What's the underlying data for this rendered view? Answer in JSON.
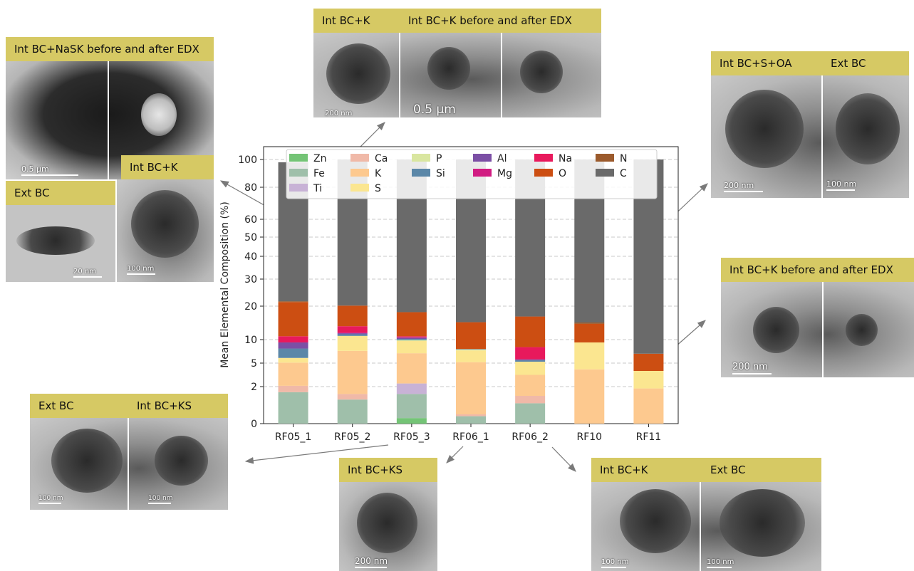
{
  "panels": {
    "top_center": {
      "label_a": "Int BC+K",
      "label_b": "Int BC+K before and after EDX",
      "scale_a": "200 nm",
      "scale_b": "0.5 μm"
    },
    "top_left": {
      "label": "Int BC+NaSK before and after EDX",
      "scale": "0.5 μm"
    },
    "mid_left": {
      "label_a": "Ext BC",
      "label_b": "Int BC+K",
      "scale_a": "20 nm",
      "scale_b": "100 nm"
    },
    "top_right": {
      "label_a": "Int BC+S+OA",
      "label_b": "Ext BC",
      "scale_a": "200 nm",
      "scale_b": "100 nm"
    },
    "mid_right": {
      "label": "Int BC+K before and after EDX",
      "scale": "200 nm"
    },
    "bottom_left": {
      "label_a": "Ext BC",
      "label_b": "Int BC+KS",
      "scale_a": "100 nm",
      "scale_b": "100 nm"
    },
    "bottom_center": {
      "label": "Int BC+KS",
      "scale": "200 nm"
    },
    "bottom_right": {
      "label_a": "Int BC+K",
      "label_b": "Ext BC",
      "scale_a": "100 nm",
      "scale_b": "100 nm"
    }
  },
  "colors": {
    "Zn": "#74c476",
    "Fe": "#9fbfaa",
    "Ti": "#c8b2d6",
    "Ca": "#f0b9a8",
    "K": "#fdc98f",
    "S": "#fbe690",
    "P": "#d9e6a0",
    "Si": "#5b87a8",
    "Al": "#7b4fa5",
    "Mg": "#d11c82",
    "Na": "#e8195c",
    "O": "#cc4e12",
    "N": "#9b5a2c",
    "C": "#6a6a6a"
  },
  "chart_data": {
    "type": "bar",
    "stacked": true,
    "ylabel": "Mean Elemental Composition (%)",
    "y_tick_labels": [
      "0",
      "2",
      "5",
      "10",
      "20",
      "30",
      "40",
      "50",
      "60",
      "80",
      "100"
    ],
    "y_tick_values": [
      0,
      2,
      5,
      10,
      20,
      30,
      40,
      50,
      60,
      80,
      100
    ],
    "grid": true,
    "legend_position": "top",
    "legend": [
      "Zn",
      "Ca",
      "P",
      "Al",
      "Na",
      "N",
      "Fe",
      "K",
      "Si",
      "Mg",
      "O",
      "C",
      "Ti",
      "S"
    ],
    "categories": [
      "RF05_1",
      "RF05_2",
      "RF05_3",
      "RF06_1",
      "RF06_2",
      "RF10",
      "RF11"
    ],
    "series": [
      {
        "name": "Zn",
        "values": [
          0,
          0,
          0.3,
          0,
          0,
          0,
          0
        ]
      },
      {
        "name": "Fe",
        "values": [
          1.7,
          1.3,
          1.3,
          0.4,
          1.1,
          0,
          0
        ]
      },
      {
        "name": "Ti",
        "values": [
          0,
          0,
          0.8,
          0,
          0,
          0,
          0
        ]
      },
      {
        "name": "Ca",
        "values": [
          0.4,
          0.3,
          0,
          0.1,
          0.4,
          0,
          0
        ]
      },
      {
        "name": "K",
        "values": [
          3.0,
          6.0,
          4.7,
          4.7,
          2.0,
          4.2,
          1.9
        ]
      },
      {
        "name": "S",
        "values": [
          1.0,
          3.5,
          2.6,
          2.5,
          1.8,
          5.2,
          2.1
        ]
      },
      {
        "name": "P",
        "values": [
          0,
          0,
          0.2,
          0.2,
          0,
          0,
          0
        ]
      },
      {
        "name": "Si",
        "values": [
          2.0,
          0.5,
          0.3,
          0.1,
          0.3,
          0,
          0
        ]
      },
      {
        "name": "Al",
        "values": [
          1.3,
          0.3,
          0.4,
          0,
          0.2,
          0,
          0
        ]
      },
      {
        "name": "Mg",
        "values": [
          0,
          0.2,
          0.1,
          0,
          0,
          0,
          0
        ]
      },
      {
        "name": "Na",
        "values": [
          1.6,
          1.9,
          0.3,
          0,
          2.6,
          0,
          0
        ]
      },
      {
        "name": "O",
        "values": [
          10.5,
          6.2,
          7.2,
          7.2,
          8.5,
          5.3,
          3.0
        ]
      },
      {
        "name": "N",
        "values": [
          0.3,
          0,
          0,
          0,
          0,
          0.4,
          0
        ]
      },
      {
        "name": "C",
        "values": [
          76.2,
          79.8,
          81.8,
          84.8,
          83.1,
          84.9,
          93.0
        ]
      }
    ]
  }
}
